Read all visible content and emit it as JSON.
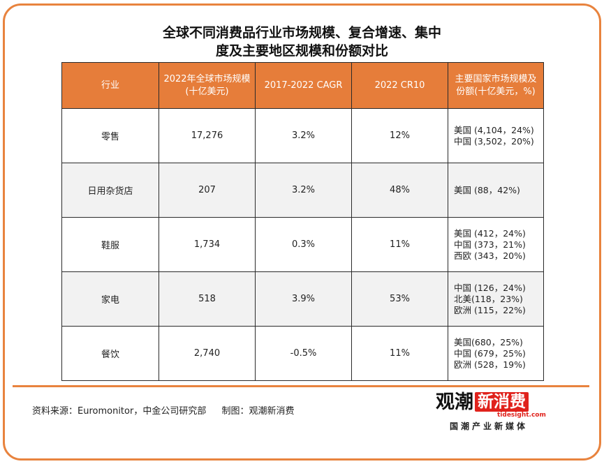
{
  "title": {
    "line1": "全球不同消费品行业市场规模、复合增速、集中",
    "line2": "度及主要地区规模和份额对比"
  },
  "table": {
    "headers": [
      "行业",
      "2022年全球市场规模(十亿美元)",
      "2017-2022 CAGR",
      "2022 CR10",
      "主要国家市场规模及份额(十亿美元，%)"
    ],
    "rows": [
      {
        "industry": "零售",
        "size": "17,276",
        "cagr": "3.2%",
        "cr10": "12%",
        "regions": [
          "美国 (4,104，24%)",
          "中国 (3,502，20%)"
        ]
      },
      {
        "industry": "日用杂货店",
        "size": "207",
        "cagr": "3.2%",
        "cr10": "48%",
        "regions": [
          "美国 (88，42%)"
        ]
      },
      {
        "industry": "鞋服",
        "size": "1,734",
        "cagr": "0.3%",
        "cr10": "11%",
        "regions": [
          "美国 (412，24%)",
          "中国 (373，21%)",
          "西欧 (343，20%)"
        ]
      },
      {
        "industry": "家电",
        "size": "518",
        "cagr": "3.9%",
        "cr10": "53%",
        "regions": [
          "中国 (126，24%)",
          "北美(118，23%)",
          "欧洲 (115，22%)"
        ]
      },
      {
        "industry": "餐饮",
        "size": "2,740",
        "cagr": "-0.5%",
        "cr10": "11%",
        "regions": [
          "美国(680，25%)",
          "中国 (679，25%)",
          "欧洲 (528，19%)"
        ]
      }
    ]
  },
  "footer": {
    "source": "资料来源：Euromonitor，中金公司研究部",
    "credit": "制图：观潮新消费"
  },
  "logo": {
    "part1": "观潮",
    "part2": "新消费",
    "domain": "tidesight.com",
    "tagline": "国潮产业新媒体"
  },
  "colors": {
    "accent": "#e8833e",
    "header_bg": "#e67d3a",
    "logo_red": "#e0221c"
  }
}
